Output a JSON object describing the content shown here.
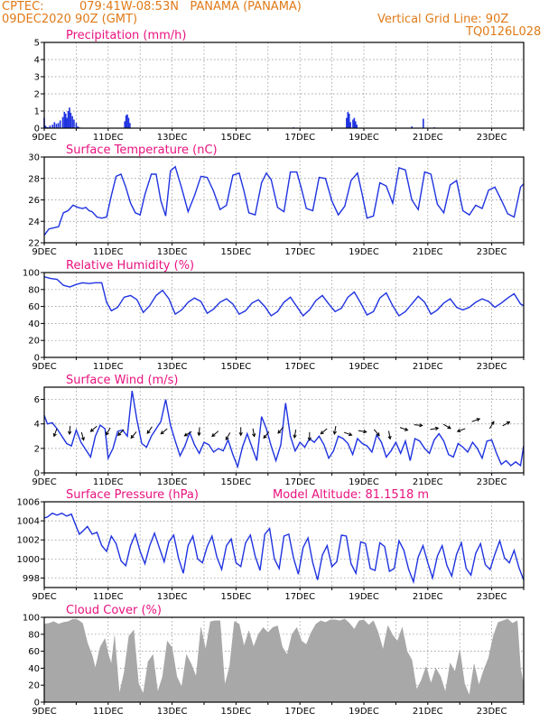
{
  "header": {
    "source": "CPTEC:",
    "location": "079:41W-08:53N   PANAMA (PANAMA)",
    "run": "09DEC2020 90Z (GMT)",
    "grid_note": "Vertical Grid Line: 90Z",
    "code": "TQ0126L028"
  },
  "chart_data": [
    {
      "type": "bar",
      "title": "Precipitation (mm/h)",
      "x_range_days": [
        9,
        24
      ],
      "ylim": [
        0,
        5
      ],
      "yticks": [
        0,
        1,
        2,
        3,
        4,
        5
      ],
      "xtick_labels": [
        "9DEC",
        "11DEC",
        "13DEC",
        "15DEC",
        "17DEC",
        "19DEC",
        "21DEC",
        "23DEC"
      ],
      "color": "#1f33e0",
      "grid": true,
      "x_day": [
        9.0,
        9.03,
        9.06,
        9.09,
        9.12,
        9.18,
        9.26,
        9.32,
        9.38,
        9.44,
        9.5,
        9.58,
        9.63,
        9.67,
        9.71,
        9.75,
        9.79,
        9.83,
        9.88,
        9.93,
        10.0,
        10.05,
        10.1,
        11.52,
        11.56,
        11.6,
        11.64,
        11.68,
        16.8,
        18.46,
        18.5,
        18.54,
        18.58,
        18.66,
        18.7,
        18.74,
        18.78,
        20.5,
        20.86,
        21.2
      ],
      "values": [
        0.6,
        0.15,
        0.08,
        0.05,
        0.05,
        0.15,
        0.2,
        0.35,
        0.25,
        0.3,
        0.45,
        0.65,
        0.95,
        0.85,
        0.6,
        1.0,
        1.2,
        0.9,
        0.7,
        0.5,
        0.3,
        0.1,
        0.05,
        0.4,
        0.75,
        0.8,
        0.6,
        0.3,
        0.05,
        0.6,
        0.95,
        0.85,
        0.35,
        0.5,
        0.6,
        0.4,
        0.2,
        0.1,
        0.55,
        0.05
      ]
    },
    {
      "type": "line",
      "title": "Surface Temperature (nC)",
      "x_range_days": [
        9,
        24
      ],
      "ylim": [
        22,
        30
      ],
      "yticks": [
        22,
        24,
        26,
        28,
        30
      ],
      "xtick_labels": [
        "9DEC",
        "11DEC",
        "13DEC",
        "15DEC",
        "17DEC",
        "19DEC",
        "21DEC",
        "23DEC"
      ],
      "color": "#1f33e0",
      "grid": true,
      "x_day": [
        9.0,
        9.15,
        9.3,
        9.45,
        9.6,
        9.75,
        9.9,
        10.05,
        10.2,
        10.3,
        10.4,
        10.5,
        10.65,
        10.8,
        10.95,
        11.1,
        11.25,
        11.4,
        11.55,
        11.7,
        11.85,
        12.0,
        12.15,
        12.35,
        12.5,
        12.65,
        12.8,
        12.95,
        13.1,
        13.3,
        13.5,
        13.7,
        13.9,
        14.1,
        14.3,
        14.5,
        14.7,
        14.9,
        15.1,
        15.25,
        15.4,
        15.6,
        15.8,
        15.95,
        16.1,
        16.3,
        16.5,
        16.7,
        16.9,
        17.05,
        17.2,
        17.4,
        17.6,
        17.8,
        18.0,
        18.2,
        18.4,
        18.6,
        18.8,
        18.95,
        19.1,
        19.3,
        19.5,
        19.7,
        19.9,
        20.1,
        20.3,
        20.5,
        20.7,
        20.9,
        21.1,
        21.3,
        21.5,
        21.7,
        21.9,
        22.1,
        22.3,
        22.5,
        22.7,
        22.9,
        23.1,
        23.3,
        23.5,
        23.7,
        23.9,
        24.0
      ],
      "values": [
        22.7,
        23.3,
        23.4,
        23.5,
        24.8,
        25.0,
        25.5,
        25.3,
        25.2,
        25.3,
        25.0,
        24.9,
        24.4,
        24.3,
        24.4,
        26.4,
        28.2,
        28.4,
        27.2,
        25.7,
        24.8,
        24.6,
        26.5,
        28.4,
        28.4,
        25.9,
        24.5,
        28.7,
        29.1,
        27.1,
        24.9,
        26.4,
        28.2,
        28.1,
        26.8,
        25.1,
        25.5,
        28.3,
        28.5,
        26.8,
        24.8,
        24.6,
        27.6,
        28.5,
        27.9,
        25.3,
        24.9,
        28.6,
        28.6,
        27.0,
        25.2,
        25.0,
        28.1,
        28.0,
        25.9,
        24.6,
        25.4,
        27.8,
        28.5,
        26.5,
        24.3,
        24.5,
        27.6,
        27.3,
        25.7,
        29.0,
        28.8,
        26.0,
        25.1,
        28.6,
        28.4,
        25.6,
        24.8,
        27.4,
        27.8,
        25.0,
        24.6,
        25.5,
        25.2,
        26.9,
        27.2,
        26.0,
        24.7,
        24.4,
        27.2,
        27.5
      ]
    },
    {
      "type": "line",
      "title": "Relative Humidity (%)",
      "x_range_days": [
        9,
        24
      ],
      "ylim": [
        0,
        100
      ],
      "yticks": [
        0,
        20,
        40,
        60,
        80,
        100
      ],
      "xtick_labels": [
        "9DEC",
        "11DEC",
        "13DEC",
        "15DEC",
        "17DEC",
        "19DEC",
        "21DEC",
        "23DEC"
      ],
      "color": "#1f33e0",
      "grid": true,
      "x_day": [
        9.0,
        9.2,
        9.4,
        9.6,
        9.8,
        10.0,
        10.2,
        10.4,
        10.6,
        10.8,
        10.95,
        11.1,
        11.3,
        11.5,
        11.7,
        11.9,
        12.1,
        12.3,
        12.5,
        12.7,
        12.9,
        13.1,
        13.3,
        13.5,
        13.7,
        13.9,
        14.1,
        14.3,
        14.5,
        14.7,
        14.9,
        15.1,
        15.3,
        15.5,
        15.7,
        15.9,
        16.1,
        16.3,
        16.5,
        16.7,
        16.9,
        17.1,
        17.3,
        17.5,
        17.7,
        17.9,
        18.1,
        18.3,
        18.5,
        18.7,
        18.9,
        19.1,
        19.3,
        19.5,
        19.7,
        19.9,
        20.1,
        20.3,
        20.5,
        20.7,
        20.9,
        21.1,
        21.3,
        21.5,
        21.7,
        21.9,
        22.1,
        22.3,
        22.5,
        22.7,
        22.9,
        23.1,
        23.3,
        23.5,
        23.7,
        23.9,
        24.0
      ],
      "values": [
        95,
        93,
        92,
        85,
        83,
        86,
        88,
        87,
        88,
        88,
        65,
        55,
        59,
        71,
        73,
        68,
        53,
        61,
        73,
        79,
        69,
        51,
        56,
        65,
        70,
        66,
        52,
        57,
        65,
        69,
        63,
        51,
        55,
        64,
        68,
        60,
        49,
        54,
        65,
        71,
        60,
        49,
        56,
        67,
        73,
        63,
        54,
        58,
        71,
        77,
        64,
        50,
        54,
        70,
        76,
        61,
        49,
        54,
        63,
        72,
        65,
        51,
        56,
        64,
        69,
        59,
        56,
        59,
        65,
        69,
        66,
        59,
        64,
        70,
        75,
        63,
        61
      ]
    },
    {
      "type": "line",
      "title": "Surface Wind (m/s)",
      "x_range_days": [
        9,
        24
      ],
      "ylim": [
        0,
        7
      ],
      "yticks": [
        0,
        2,
        4,
        6
      ],
      "xtick_labels": [
        "9DEC",
        "11DEC",
        "13DEC",
        "15DEC",
        "17DEC",
        "19DEC",
        "21DEC",
        "23DEC"
      ],
      "color": "#1f33e0",
      "grid": true,
      "x_day": [
        9.0,
        9.1,
        9.25,
        9.4,
        9.55,
        9.7,
        9.85,
        10.0,
        10.15,
        10.3,
        10.45,
        10.6,
        10.75,
        10.9,
        11.0,
        11.15,
        11.3,
        11.45,
        11.6,
        11.75,
        11.9,
        12.05,
        12.2,
        12.35,
        12.5,
        12.65,
        12.8,
        12.95,
        13.1,
        13.25,
        13.4,
        13.55,
        13.7,
        13.85,
        14.0,
        14.15,
        14.3,
        14.45,
        14.6,
        14.75,
        14.9,
        15.05,
        15.2,
        15.35,
        15.5,
        15.65,
        15.8,
        15.95,
        16.1,
        16.25,
        16.4,
        16.55,
        16.7,
        16.85,
        17.0,
        17.15,
        17.3,
        17.45,
        17.6,
        17.75,
        17.9,
        18.05,
        18.2,
        18.35,
        18.5,
        18.65,
        18.8,
        18.95,
        19.1,
        19.25,
        19.4,
        19.55,
        19.7,
        19.85,
        20.0,
        20.15,
        20.3,
        20.45,
        20.6,
        20.75,
        20.9,
        21.05,
        21.2,
        21.35,
        21.5,
        21.65,
        21.8,
        21.95,
        22.1,
        22.25,
        22.4,
        22.55,
        22.7,
        22.85,
        23.0,
        23.15,
        23.3,
        23.45,
        23.6,
        23.75,
        23.9,
        24.0
      ],
      "values": [
        4.7,
        4.0,
        4.1,
        3.6,
        3.0,
        2.4,
        2.2,
        3.5,
        2.5,
        1.9,
        1.3,
        3.0,
        3.9,
        3.6,
        1.2,
        2.0,
        3.4,
        3.5,
        3.0,
        6.7,
        4.3,
        2.4,
        2.1,
        3.0,
        3.6,
        4.2,
        6.0,
        3.9,
        2.6,
        1.4,
        2.2,
        3.3,
        2.3,
        1.6,
        2.5,
        2.3,
        1.7,
        2.0,
        1.8,
        2.7,
        1.5,
        0.5,
        2.1,
        3.2,
        2.1,
        1.0,
        4.6,
        3.6,
        2.2,
        1.0,
        2.3,
        5.7,
        3.0,
        1.8,
        2.5,
        2.1,
        2.8,
        2.5,
        3.0,
        2.3,
        1.2,
        1.8,
        3.0,
        2.8,
        2.4,
        1.5,
        2.8,
        2.4,
        2.2,
        1.7,
        3.1,
        2.5,
        1.3,
        1.8,
        2.5,
        1.6,
        2.6,
        1.0,
        2.8,
        2.6,
        2.0,
        1.6,
        2.7,
        3.2,
        2.6,
        1.5,
        1.3,
        2.4,
        2.1,
        1.7,
        2.5,
        2.0,
        1.2,
        2.6,
        2.7,
        1.6,
        0.7,
        1.0,
        0.6,
        0.9,
        0.6,
        2.2
      ],
      "arrows_x_day": [
        9.35,
        9.8,
        10.2,
        10.55,
        11.0,
        11.4,
        11.8,
        12.3,
        12.75,
        13.5,
        13.85,
        14.35,
        14.75,
        15.15,
        15.55,
        15.95,
        16.4,
        16.85,
        17.3,
        17.75,
        18.1,
        18.5,
        18.95,
        19.4,
        19.8,
        20.25,
        20.7,
        21.2,
        21.6,
        22.05,
        22.5,
        23.0,
        23.45
      ],
      "arrows_y": [
        3.3,
        3.5,
        3.0,
        3.6,
        3.4,
        3.3,
        3.1,
        3.5,
        3.4,
        3.2,
        3.4,
        3.2,
        3.0,
        3.4,
        3.3,
        3.1,
        3.5,
        3.2,
        3.0,
        3.4,
        3.5,
        3.2,
        3.4,
        3.3,
        3.1,
        3.6,
        3.9,
        3.6,
        3.8,
        3.5,
        4.3,
        3.9,
        4.0
      ],
      "arrows_angle_deg": [
        110,
        95,
        75,
        140,
        120,
        135,
        130,
        125,
        140,
        150,
        95,
        140,
        120,
        90,
        80,
        130,
        130,
        100,
        90,
        140,
        100,
        20,
        10,
        50,
        80,
        20,
        5,
        350,
        30,
        160,
        340,
        300,
        330
      ]
    },
    {
      "type": "line",
      "title": "Surface Pressure (hPa)",
      "annotation": "Model Altitude: 81.1518 m",
      "x_range_days": [
        9,
        24
      ],
      "ylim": [
        997,
        1006
      ],
      "yticks": [
        998,
        1000,
        1002,
        1004,
        1006
      ],
      "xtick_labels": [
        "9DEC",
        "11DEC",
        "13DEC",
        "15DEC",
        "17DEC",
        "19DEC",
        "21DEC",
        "23DEC"
      ],
      "color": "#1f33e0",
      "grid": true,
      "x_day": [
        9.0,
        9.1,
        9.25,
        9.4,
        9.55,
        9.7,
        9.85,
        10.0,
        10.1,
        10.2,
        10.35,
        10.5,
        10.65,
        10.8,
        10.95,
        11.1,
        11.25,
        11.4,
        11.55,
        11.7,
        11.85,
        12.0,
        12.15,
        12.3,
        12.45,
        12.6,
        12.75,
        12.9,
        13.05,
        13.2,
        13.35,
        13.5,
        13.65,
        13.8,
        13.95,
        14.1,
        14.25,
        14.4,
        14.55,
        14.7,
        14.85,
        15.0,
        15.15,
        15.3,
        15.45,
        15.6,
        15.75,
        15.9,
        16.05,
        16.2,
        16.35,
        16.5,
        16.65,
        16.8,
        16.95,
        17.1,
        17.25,
        17.4,
        17.55,
        17.7,
        17.85,
        18.0,
        18.15,
        18.3,
        18.45,
        18.6,
        18.75,
        18.9,
        19.05,
        19.2,
        19.35,
        19.5,
        19.65,
        19.8,
        19.95,
        20.1,
        20.25,
        20.4,
        20.55,
        20.7,
        20.85,
        21.0,
        21.15,
        21.3,
        21.45,
        21.6,
        21.75,
        21.9,
        22.05,
        22.2,
        22.35,
        22.5,
        22.65,
        22.8,
        22.95,
        23.1,
        23.25,
        23.4,
        23.55,
        23.7,
        23.85,
        24.0
      ],
      "values": [
        1004.3,
        1004.4,
        1004.8,
        1004.6,
        1004.8,
        1004.5,
        1004.7,
        1003.4,
        1002.6,
        1002.9,
        1003.4,
        1002.6,
        1002.8,
        1001.4,
        1000.8,
        1002.4,
        1001.6,
        999.8,
        999.3,
        1001.4,
        1002.6,
        1000.8,
        999.5,
        1001.4,
        1002.7,
        1001.2,
        999.7,
        1001.8,
        1002.5,
        1000.1,
        998.5,
        1001.4,
        1002.4,
        1000.0,
        999.6,
        1001.3,
        1002.4,
        1000.2,
        998.9,
        1001.4,
        1002.1,
        999.6,
        999.2,
        1001.7,
        1002.5,
        1000.3,
        998.8,
        1002.6,
        1003.2,
        1000.0,
        999.0,
        1002.4,
        1002.6,
        1000.1,
        998.4,
        1001.2,
        1002.2,
        999.6,
        997.8,
        1000.4,
        1001.4,
        999.2,
        999.7,
        1002.5,
        1002.4,
        999.5,
        998.5,
        1001.8,
        1001.6,
        999.0,
        998.8,
        1001.7,
        1001.3,
        998.7,
        999.0,
        1001.9,
        1000.9,
        998.9,
        997.6,
        1000.2,
        1001.4,
        999.6,
        998.0,
        1000.3,
        1001.4,
        999.3,
        998.2,
        1000.5,
        1001.7,
        999.0,
        998.3,
        1000.6,
        1001.6,
        999.4,
        998.9,
        1000.5,
        1001.9,
        1000.1,
        999.6,
        1000.9,
        999.1,
        997.8
      ]
    },
    {
      "type": "area",
      "title": "Cloud Cover (%)",
      "x_range_days": [
        9,
        24
      ],
      "ylim": [
        0,
        100
      ],
      "yticks": [
        0,
        20,
        40,
        60,
        80,
        100
      ],
      "xtick_labels": [
        "9DEC",
        "11DEC",
        "13DEC",
        "15DEC",
        "17DEC",
        "19DEC",
        "21DEC",
        "23DEC"
      ],
      "color": "#a8a8a8",
      "grid": true,
      "x_day": [
        9.0,
        9.15,
        9.3,
        9.45,
        9.6,
        9.75,
        9.9,
        10.05,
        10.2,
        10.35,
        10.5,
        10.6,
        10.75,
        10.9,
        11.0,
        11.1,
        11.2,
        11.35,
        11.5,
        11.65,
        11.8,
        11.95,
        12.1,
        12.25,
        12.4,
        12.55,
        12.7,
        12.85,
        13.0,
        13.15,
        13.3,
        13.45,
        13.6,
        13.75,
        13.9,
        14.05,
        14.2,
        14.35,
        14.5,
        14.65,
        14.8,
        14.95,
        15.1,
        15.25,
        15.4,
        15.55,
        15.7,
        15.85,
        16.0,
        16.15,
        16.3,
        16.45,
        16.6,
        16.75,
        16.9,
        17.05,
        17.2,
        17.35,
        17.5,
        17.65,
        17.8,
        17.95,
        18.1,
        18.25,
        18.4,
        18.55,
        18.7,
        18.85,
        19.0,
        19.15,
        19.3,
        19.45,
        19.6,
        19.75,
        19.9,
        20.05,
        20.2,
        20.35,
        20.5,
        20.65,
        20.8,
        20.95,
        21.1,
        21.25,
        21.4,
        21.55,
        21.7,
        21.85,
        22.0,
        22.15,
        22.3,
        22.45,
        22.6,
        22.75,
        22.9,
        23.05,
        23.2,
        23.35,
        23.5,
        23.65,
        23.8,
        23.9,
        24.0
      ],
      "values": [
        92,
        93,
        95,
        92,
        94,
        95,
        98,
        97,
        93,
        70,
        55,
        40,
        65,
        75,
        57,
        45,
        78,
        10,
        35,
        78,
        85,
        22,
        10,
        48,
        56,
        12,
        30,
        72,
        64,
        30,
        18,
        56,
        45,
        30,
        88,
        62,
        95,
        96,
        96,
        20,
        42,
        95,
        92,
        66,
        84,
        65,
        80,
        88,
        82,
        88,
        90,
        65,
        56,
        80,
        88,
        72,
        68,
        82,
        92,
        96,
        94,
        97,
        97,
        96,
        98,
        93,
        86,
        96,
        97,
        91,
        96,
        82,
        62,
        90,
        79,
        72,
        88,
        60,
        50,
        15,
        26,
        42,
        22,
        40,
        30,
        12,
        46,
        36,
        62,
        22,
        8,
        45,
        20,
        38,
        52,
        78,
        94,
        96,
        98,
        93,
        96,
        40,
        20
      ]
    }
  ]
}
